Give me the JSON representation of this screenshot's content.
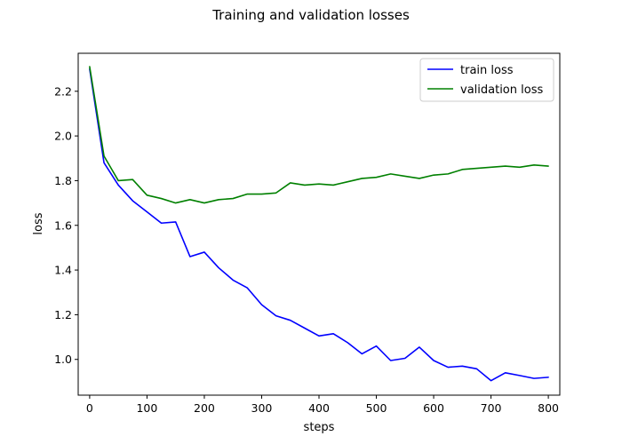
{
  "chart_data": {
    "type": "line",
    "title": "Training and validation losses",
    "xlabel": "steps",
    "ylabel": "loss",
    "xlim": [
      -20,
      820
    ],
    "ylim": [
      0.84,
      2.37
    ],
    "xticks": [
      0,
      100,
      200,
      300,
      400,
      500,
      600,
      700,
      800
    ],
    "yticks": [
      1.0,
      1.2,
      1.4,
      1.6,
      1.8,
      2.0,
      2.2
    ],
    "ytick_labels": [
      "1.0",
      "1.2",
      "1.4",
      "1.6",
      "1.8",
      "2.0",
      "2.2"
    ],
    "grid": false,
    "legend_position": "top-right",
    "x": [
      0,
      25,
      50,
      75,
      100,
      125,
      150,
      175,
      200,
      225,
      250,
      275,
      300,
      325,
      350,
      375,
      400,
      425,
      450,
      475,
      500,
      525,
      550,
      575,
      600,
      625,
      650,
      675,
      700,
      725,
      750,
      775,
      800
    ],
    "series": [
      {
        "name": "train loss",
        "color": "#0000ff",
        "values": [
          2.3,
          1.88,
          1.78,
          1.71,
          1.66,
          1.61,
          1.615,
          1.46,
          1.48,
          1.41,
          1.355,
          1.32,
          1.245,
          1.195,
          1.175,
          1.14,
          1.105,
          1.115,
          1.075,
          1.025,
          1.06,
          0.995,
          1.005,
          1.055,
          0.995,
          0.965,
          0.97,
          0.958,
          0.905,
          0.94,
          0.928,
          0.915,
          0.92
        ]
      },
      {
        "name": "validation loss",
        "color": "#008000",
        "values": [
          2.31,
          1.91,
          1.8,
          1.805,
          1.735,
          1.72,
          1.7,
          1.715,
          1.7,
          1.715,
          1.72,
          1.74,
          1.74,
          1.745,
          1.79,
          1.78,
          1.785,
          1.78,
          1.795,
          1.81,
          1.815,
          1.83,
          1.82,
          1.81,
          1.825,
          1.83,
          1.85,
          1.855,
          1.86,
          1.865,
          1.86,
          1.87,
          1.865
        ]
      }
    ]
  }
}
